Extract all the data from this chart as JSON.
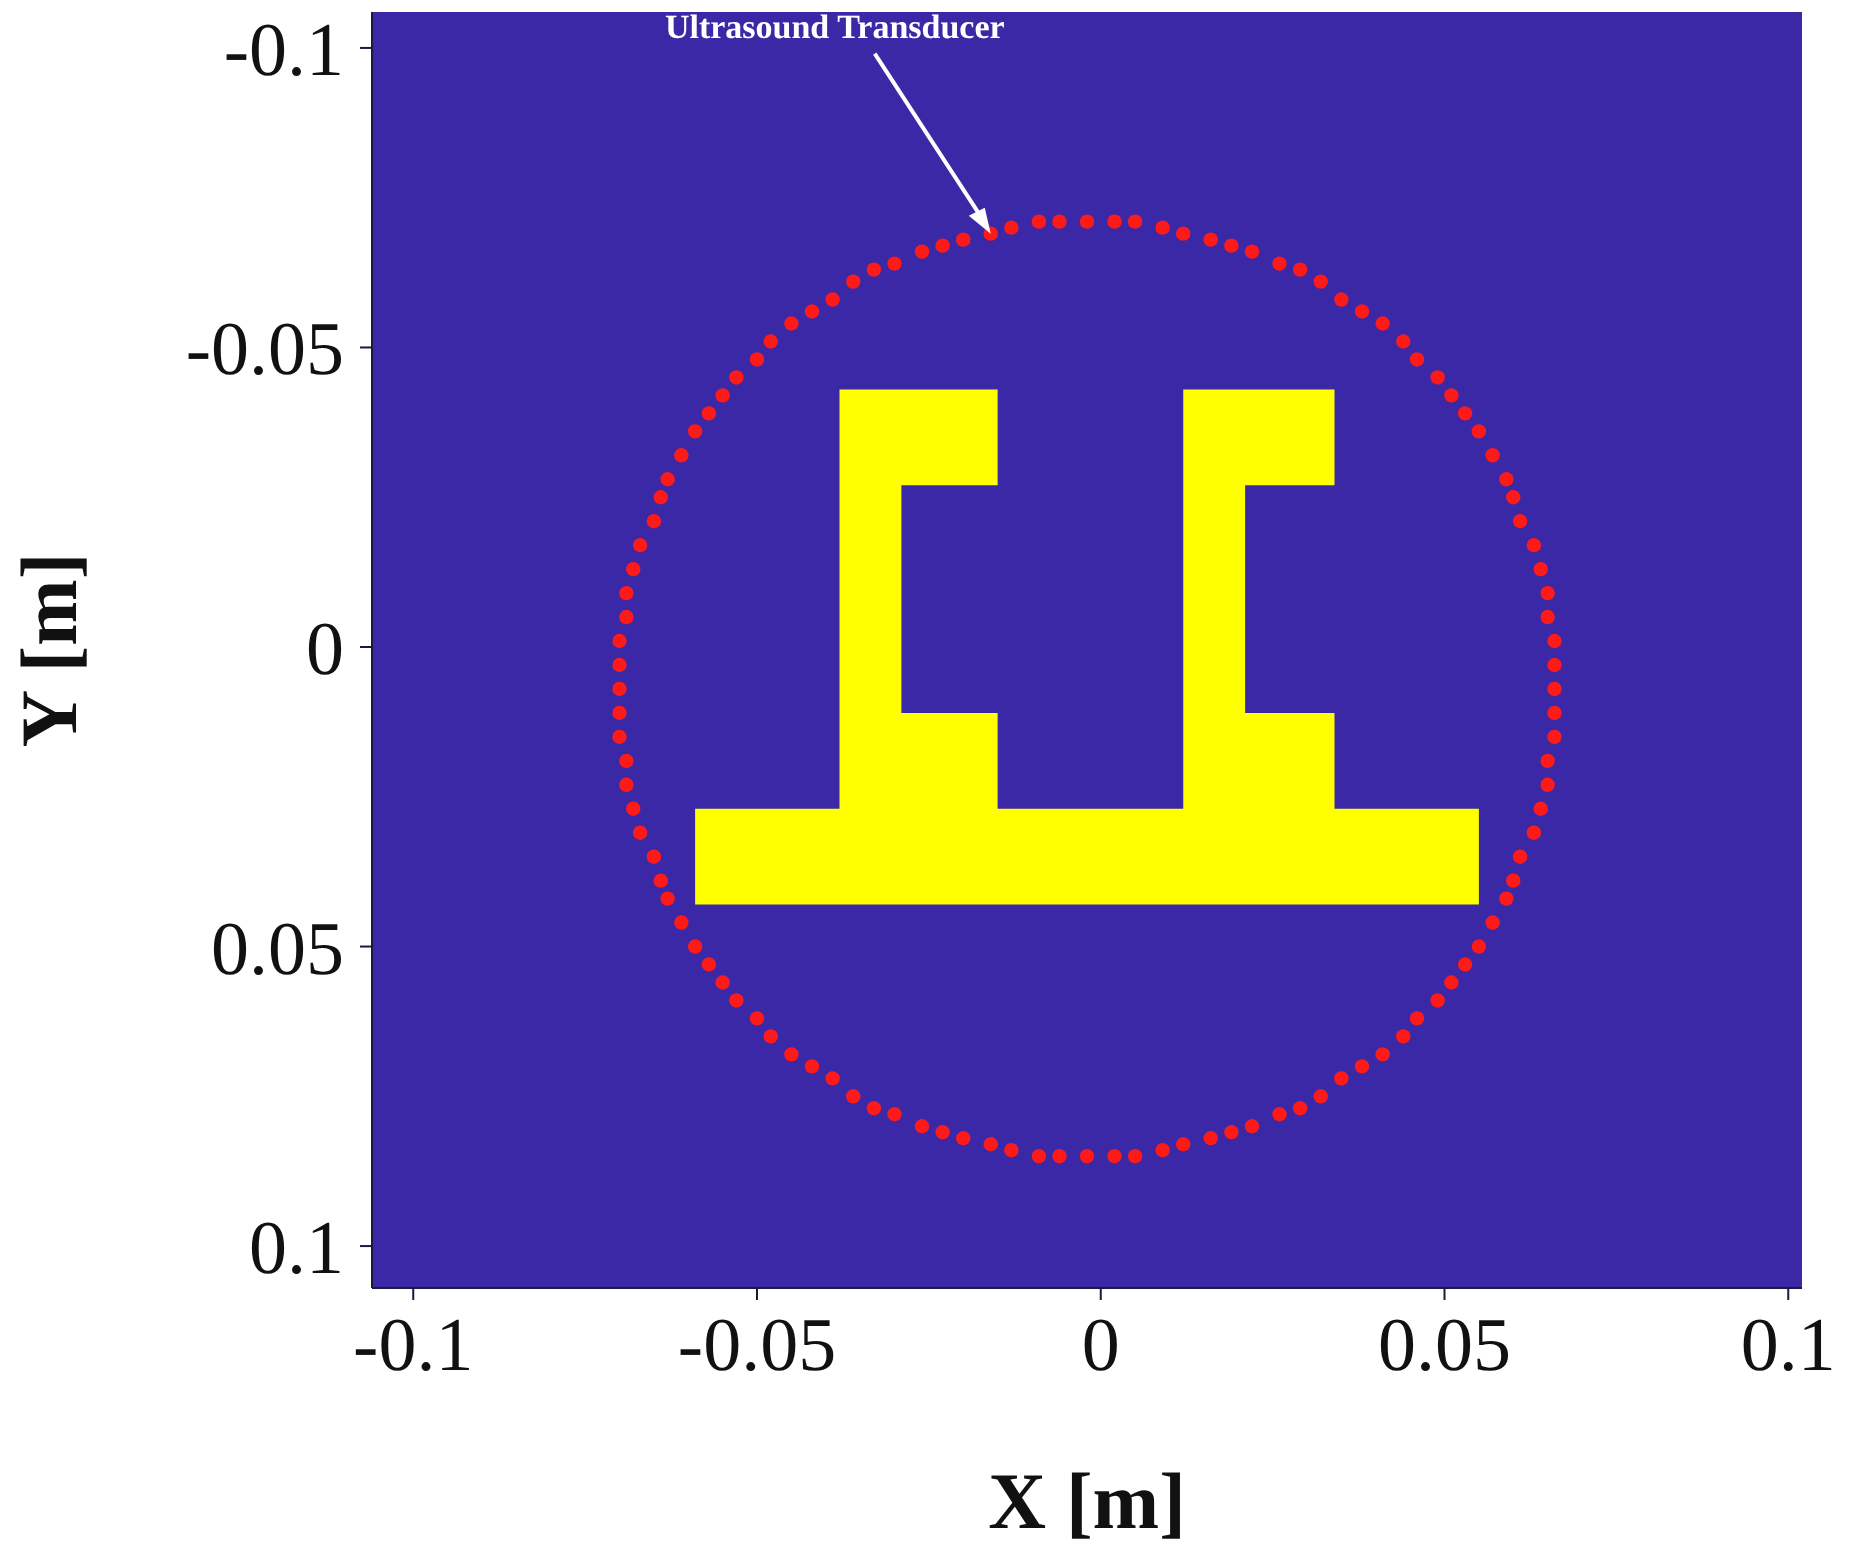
{
  "chart_data": {
    "type": "scatter",
    "xlabel": "X [m]",
    "ylabel": "Y [m]",
    "xlim": [
      -0.106,
      0.102
    ],
    "ylim": [
      0.107,
      -0.106
    ],
    "xticks": [
      -0.1,
      -0.05,
      0,
      0.05,
      0.1
    ],
    "yticks": [
      -0.1,
      -0.05,
      0,
      0.05,
      0.1
    ],
    "marker": "circle",
    "annotations": [
      {
        "text": "Ultrasound Transducer",
        "x": -0.016,
        "y": -0.069
      }
    ],
    "series": [
      {
        "type": "area",
        "marker": "none",
        "color": "#ffff00",
        "x": [
          -0.038,
          -0.015,
          -0.015,
          -0.029,
          -0.029,
          -0.015,
          -0.015,
          0.012,
          0.012,
          0.034,
          0.034,
          0.021,
          0.021,
          0.034,
          0.034,
          0.055,
          0.055,
          -0.059,
          -0.059,
          -0.038
        ],
        "values": [
          -0.043,
          -0.043,
          -0.027,
          -0.027,
          0.011,
          0.011,
          0.027,
          0.027,
          -0.043,
          -0.043,
          -0.027,
          -0.027,
          0.011,
          0.011,
          0.027,
          0.027,
          0.043,
          0.043,
          0.027,
          0.027
        ]
      },
      {
        "color": "#ff1a1a",
        "x": [
          0.066,
          0.066,
          0.066,
          0.065,
          0.065,
          0.064,
          0.063,
          0.061,
          0.06,
          0.059,
          0.057,
          0.055,
          0.053,
          0.051,
          0.049,
          0.046,
          0.044,
          0.041,
          0.038,
          0.035,
          0.032,
          0.029,
          0.026,
          0.022,
          0.019,
          0.016,
          0.012,
          0.009,
          0.005,
          0.002,
          -0.002,
          -0.006,
          -0.009,
          -0.013,
          -0.016,
          -0.02,
          -0.023,
          -0.026,
          -0.03,
          -0.033,
          -0.036,
          -0.039,
          -0.042,
          -0.045,
          -0.048,
          -0.05,
          -0.053,
          -0.055,
          -0.057,
          -0.059,
          -0.061,
          -0.063,
          -0.064,
          -0.065,
          -0.067,
          -0.068,
          -0.069,
          -0.069,
          -0.07,
          -0.07,
          -0.07,
          -0.07,
          -0.07,
          -0.069,
          -0.069,
          -0.068,
          -0.067,
          -0.065,
          -0.064,
          -0.063,
          -0.061,
          -0.059,
          -0.057,
          -0.055,
          -0.053,
          -0.05,
          -0.048,
          -0.045,
          -0.042,
          -0.039,
          -0.036,
          -0.033,
          -0.03,
          -0.026,
          -0.023,
          -0.02,
          -0.016,
          -0.013,
          -0.009,
          -0.006,
          -0.002,
          0.002,
          0.005,
          0.009,
          0.012,
          0.016,
          0.019,
          0.022,
          0.026,
          0.029,
          0.032,
          0.035,
          0.038,
          0.041,
          0.044,
          0.046,
          0.049,
          0.051,
          0.053,
          0.055,
          0.057,
          0.059,
          0.06,
          0.061,
          0.063,
          0.064,
          0.065,
          0.065,
          0.066,
          0.066
        ],
        "values": [
          0.007,
          0.011,
          0.015,
          0.019,
          0.023,
          0.027,
          0.031,
          0.035,
          0.039,
          0.042,
          0.046,
          0.05,
          0.053,
          0.056,
          0.059,
          0.062,
          0.065,
          0.068,
          0.07,
          0.072,
          0.075,
          0.077,
          0.078,
          0.08,
          0.081,
          0.082,
          0.083,
          0.084,
          0.085,
          0.085,
          0.085,
          0.085,
          0.085,
          0.084,
          0.083,
          0.082,
          0.081,
          0.08,
          0.078,
          0.077,
          0.075,
          0.072,
          0.07,
          0.068,
          0.065,
          0.062,
          0.059,
          0.056,
          0.053,
          0.05,
          0.046,
          0.042,
          0.039,
          0.035,
          0.031,
          0.027,
          0.023,
          0.019,
          0.015,
          0.011,
          0.007,
          0.003,
          -0.001,
          -0.005,
          -0.009,
          -0.013,
          -0.017,
          -0.021,
          -0.025,
          -0.028,
          -0.032,
          -0.036,
          -0.039,
          -0.042,
          -0.045,
          -0.048,
          -0.051,
          -0.054,
          -0.056,
          -0.058,
          -0.061,
          -0.063,
          -0.064,
          -0.066,
          -0.067,
          -0.068,
          -0.069,
          -0.07,
          -0.071,
          -0.071,
          -0.071,
          -0.071,
          -0.071,
          -0.07,
          -0.069,
          -0.068,
          -0.067,
          -0.066,
          -0.064,
          -0.063,
          -0.061,
          -0.058,
          -0.056,
          -0.054,
          -0.051,
          -0.048,
          -0.045,
          -0.042,
          -0.039,
          -0.036,
          -0.032,
          -0.028,
          -0.025,
          -0.021,
          -0.017,
          -0.013,
          -0.009,
          -0.005,
          -0.001,
          0.003
        ]
      }
    ]
  }
}
